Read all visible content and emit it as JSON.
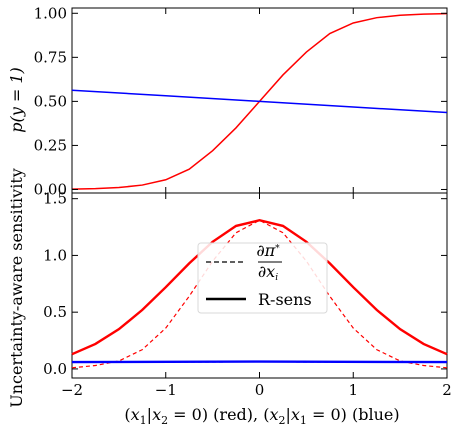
{
  "chart_data": [
    {
      "type": "line",
      "xlim": [
        -2,
        2
      ],
      "ylim": [
        -0.02,
        1.03
      ],
      "x_ticks": [
        -2,
        -1,
        0,
        1,
        2
      ],
      "y_ticks": [
        0.0,
        0.25,
        0.5,
        0.75,
        1.0
      ],
      "y_tick_labels": [
        "0.00",
        "0.25",
        "0.50",
        "0.75",
        "1.00"
      ],
      "xlabel": "",
      "ylabel": "p(y = 1)",
      "grid": false,
      "series": [
        {
          "color": "#ff0000",
          "style": "solid",
          "x": [
            -2,
            -1.75,
            -1.5,
            -1.25,
            -1,
            -0.75,
            -0.5,
            -0.25,
            0,
            0.25,
            0.5,
            0.75,
            1,
            1.25,
            1.5,
            1.75,
            2
          ],
          "y": [
            0.002,
            0.005,
            0.011,
            0.025,
            0.055,
            0.115,
            0.22,
            0.35,
            0.5,
            0.65,
            0.78,
            0.885,
            0.945,
            0.975,
            0.989,
            0.995,
            0.998
          ]
        },
        {
          "color": "#0000ff",
          "style": "solid",
          "x": [
            -2,
            -1,
            0,
            1,
            2
          ],
          "y": [
            0.563,
            0.532,
            0.5,
            0.468,
            0.437
          ]
        }
      ]
    },
    {
      "type": "line",
      "xlim": [
        -2,
        2
      ],
      "ylim": [
        -0.08,
        1.55
      ],
      "x_ticks": [
        -2,
        -1,
        0,
        1,
        2
      ],
      "x_tick_labels": [
        "−2",
        "−1",
        "0",
        "1",
        "2"
      ],
      "y_ticks": [
        0.0,
        0.5,
        1.0,
        1.5
      ],
      "y_tick_labels": [
        "0.0",
        "0.5",
        "1.0",
        "1.5"
      ],
      "xlabel": "(x1|x2 = 0) (red), (x2|x1 = 0) (blue)",
      "ylabel": "Uncertainty-aware sensitivity",
      "grid": false,
      "legend": {
        "placement": "center",
        "entries": [
          {
            "label": "∂π*/∂xi",
            "style": "dashed"
          },
          {
            "label": "R-sens",
            "style": "solid"
          }
        ]
      },
      "series": [
        {
          "name": "R-sens",
          "color": "#ff0000",
          "style": "solid",
          "x": [
            -2,
            -1.75,
            -1.5,
            -1.25,
            -1,
            -0.75,
            -0.5,
            -0.25,
            0,
            0.25,
            0.5,
            0.75,
            1,
            1.25,
            1.5,
            1.75,
            2
          ],
          "y": [
            0.13,
            0.22,
            0.35,
            0.52,
            0.72,
            0.93,
            1.12,
            1.26,
            1.31,
            1.26,
            1.12,
            0.93,
            0.72,
            0.52,
            0.35,
            0.22,
            0.13
          ]
        },
        {
          "name": "∂π*/∂xi",
          "color": "#ff0000",
          "style": "dashed",
          "x": [
            -2,
            -1.75,
            -1.5,
            -1.25,
            -1,
            -0.75,
            -0.5,
            -0.25,
            0,
            0.25,
            0.5,
            0.75,
            1,
            1.25,
            1.5,
            1.75,
            2
          ],
          "y": [
            0.01,
            0.03,
            0.07,
            0.17,
            0.36,
            0.64,
            0.95,
            1.2,
            1.31,
            1.2,
            0.95,
            0.64,
            0.36,
            0.17,
            0.07,
            0.03,
            0.01
          ]
        },
        {
          "name": "R-sens",
          "color": "#0000ff",
          "style": "solid",
          "x": [
            -2,
            0,
            2
          ],
          "y": [
            0.06,
            0.065,
            0.06
          ]
        },
        {
          "name": "∂π*/∂xi",
          "color": "#0000ff",
          "style": "dashed",
          "x": [
            -2,
            0,
            2
          ],
          "y": [
            0.058,
            0.062,
            0.058
          ]
        }
      ]
    }
  ]
}
